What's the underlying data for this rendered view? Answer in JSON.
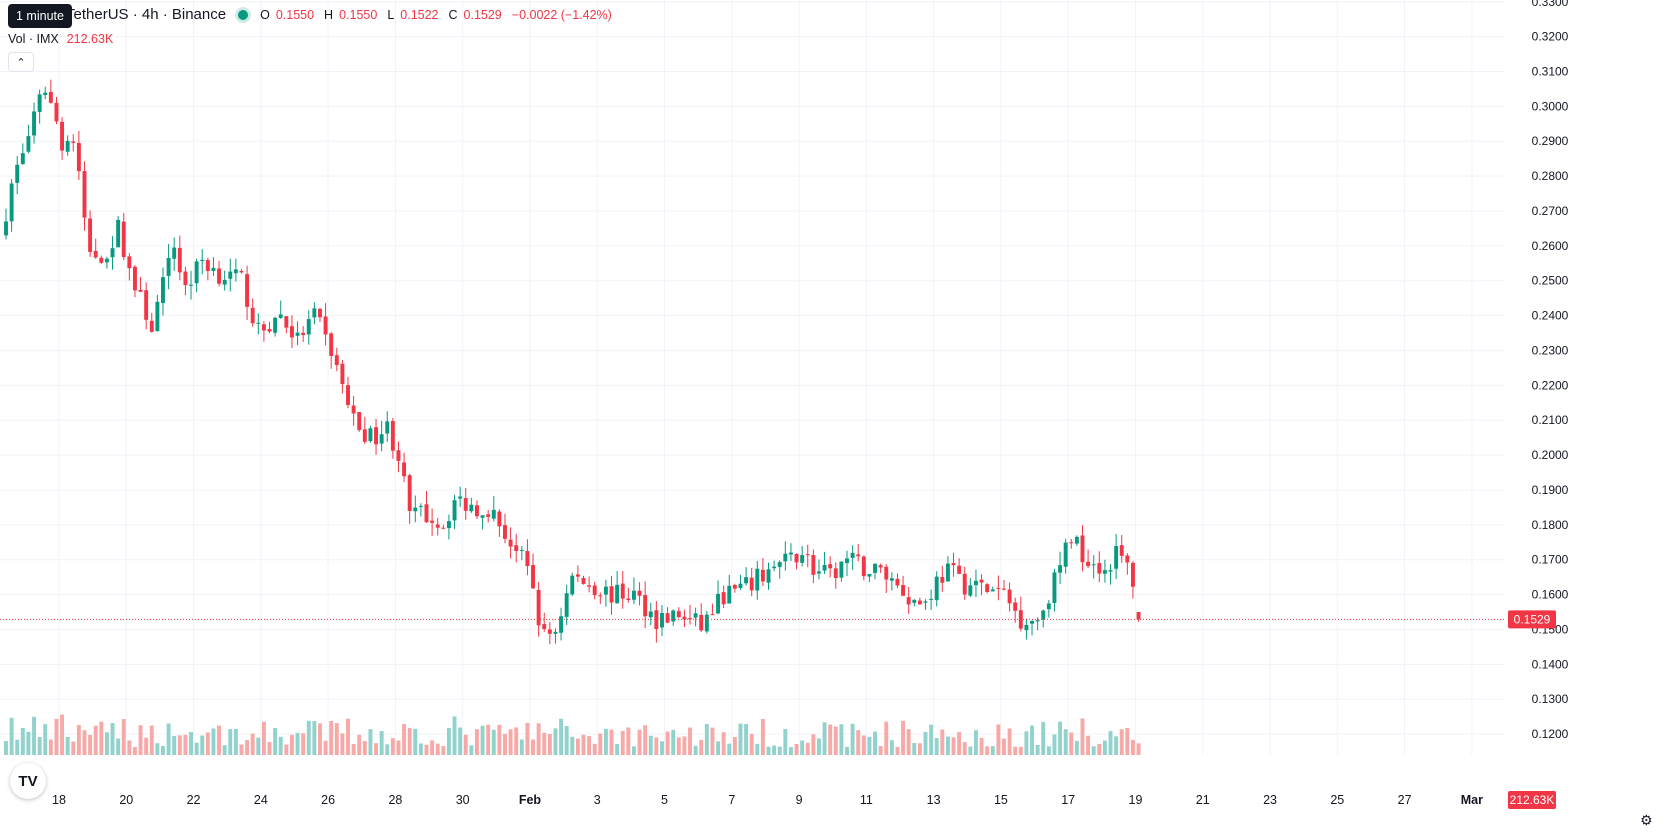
{
  "header": {
    "tooltip": "1 minute",
    "symbol": "TetherUS · 4h · Binance",
    "ohlc": [
      {
        "k": "O",
        "v": "0.1550"
      },
      {
        "k": "H",
        "v": "0.1550"
      },
      {
        "k": "L",
        "v": "0.1522"
      },
      {
        "k": "C",
        "v": "0.1529"
      }
    ],
    "change": "−0.0022 (−1.42%)",
    "volume_label": "Vol · IMX",
    "volume_value": "212.63K"
  },
  "icons": {
    "collapse": "chevron-up-icon",
    "logo": "tradingview-logo",
    "settings": "gear-icon"
  },
  "colors": {
    "up": "#089981",
    "down": "#f23645",
    "up_vol": "#92d2cc",
    "down_vol": "#f7a9a7",
    "grid": "#f0f3fa"
  },
  "chart_data": {
    "type": "candlestick",
    "interval": "4h",
    "price_axis": {
      "ticks": [
        "0.3300",
        "0.3200",
        "0.3100",
        "0.3000",
        "0.2900",
        "0.2800",
        "0.2700",
        "0.2600",
        "0.2500",
        "0.2400",
        "0.2300",
        "0.2200",
        "0.2100",
        "0.2000",
        "0.1900",
        "0.1800",
        "0.1700",
        "0.1600",
        "0.1500",
        "0.1400",
        "0.1300",
        "0.1200"
      ],
      "range": [
        0.114,
        0.3305
      ]
    },
    "time_axis": {
      "labels": [
        "18",
        "20",
        "22",
        "24",
        "26",
        "28",
        "30",
        "Feb",
        "3",
        "5",
        "7",
        "9",
        "11",
        "13",
        "15",
        "17",
        "19",
        "21",
        "23",
        "25",
        "27",
        "Mar"
      ],
      "label_day_index": [
        1,
        3,
        5,
        7,
        9,
        11,
        13,
        15,
        17,
        19,
        21,
        23,
        25,
        27,
        29,
        31,
        33,
        35,
        37,
        39,
        41,
        43
      ],
      "start": "Jan 17",
      "candles_per_day": 6
    },
    "last_price": "0.1529",
    "last_volume": "212.63K",
    "close_anchors": [
      [
        0,
        0.27
      ],
      [
        2,
        0.283
      ],
      [
        5,
        0.296
      ],
      [
        7,
        0.306
      ],
      [
        10,
        0.29
      ],
      [
        12,
        0.29
      ],
      [
        15,
        0.257
      ],
      [
        18,
        0.258
      ],
      [
        20,
        0.265
      ],
      [
        23,
        0.248
      ],
      [
        26,
        0.237
      ],
      [
        30,
        0.26
      ],
      [
        32,
        0.248
      ],
      [
        35,
        0.256
      ],
      [
        38,
        0.252
      ],
      [
        42,
        0.25
      ],
      [
        45,
        0.235
      ],
      [
        49,
        0.24
      ],
      [
        52,
        0.233
      ],
      [
        55,
        0.24
      ],
      [
        58,
        0.23
      ],
      [
        62,
        0.21
      ],
      [
        65,
        0.205
      ],
      [
        68,
        0.208
      ],
      [
        70,
        0.2
      ],
      [
        72,
        0.183
      ],
      [
        75,
        0.183
      ],
      [
        78,
        0.18
      ],
      [
        80,
        0.187
      ],
      [
        84,
        0.185
      ],
      [
        86,
        0.185
      ],
      [
        88,
        0.18
      ],
      [
        92,
        0.17
      ],
      [
        94,
        0.162
      ],
      [
        95,
        0.153
      ],
      [
        96,
        0.148
      ],
      [
        98,
        0.15
      ],
      [
        101,
        0.165
      ],
      [
        104,
        0.163
      ],
      [
        108,
        0.16
      ],
      [
        112,
        0.16
      ],
      [
        116,
        0.153
      ],
      [
        120,
        0.154
      ],
      [
        124,
        0.151
      ],
      [
        128,
        0.16
      ],
      [
        132,
        0.162
      ],
      [
        136,
        0.167
      ],
      [
        140,
        0.17
      ],
      [
        142,
        0.173
      ],
      [
        144,
        0.167
      ],
      [
        147,
        0.165
      ],
      [
        150,
        0.17
      ],
      [
        154,
        0.167
      ],
      [
        156,
        0.167
      ],
      [
        159,
        0.163
      ],
      [
        162,
        0.158
      ],
      [
        164,
        0.158
      ],
      [
        166,
        0.164
      ],
      [
        168,
        0.167
      ],
      [
        171,
        0.163
      ],
      [
        174,
        0.162
      ],
      [
        178,
        0.16
      ],
      [
        181,
        0.153
      ],
      [
        184,
        0.153
      ],
      [
        187,
        0.164
      ],
      [
        190,
        0.177
      ],
      [
        192,
        0.172
      ],
      [
        196,
        0.167
      ],
      [
        198,
        0.172
      ],
      [
        200,
        0.168
      ],
      [
        201,
        0.164
      ],
      [
        202,
        0.153
      ]
    ],
    "volume_range": [
      0,
      4200000
    ]
  }
}
